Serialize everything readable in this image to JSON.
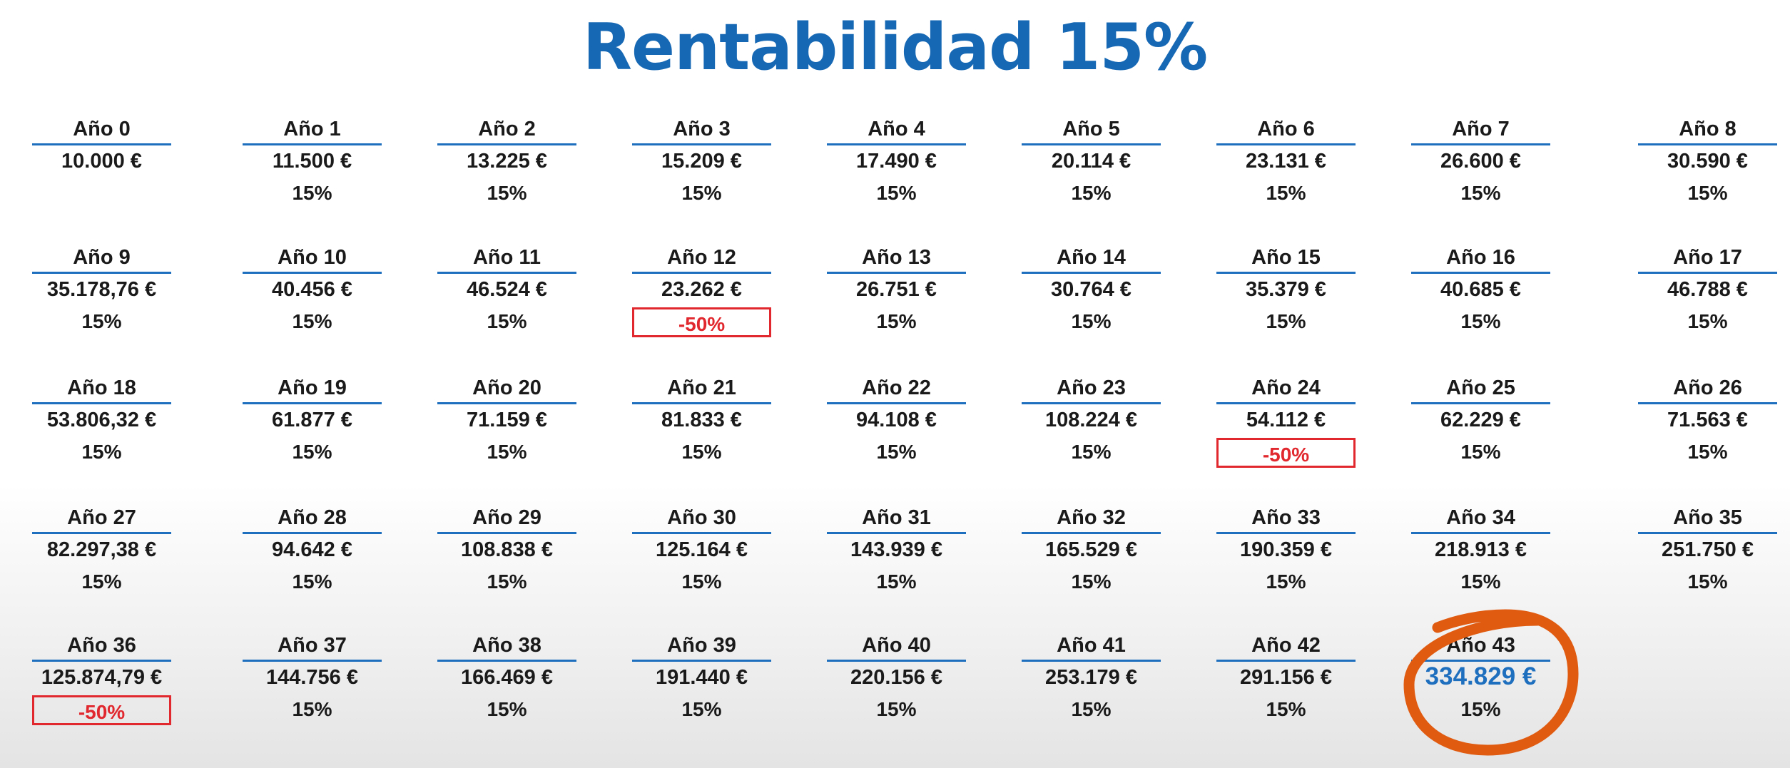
{
  "title": "Rentabilidad 15%",
  "colors": {
    "title": "#1668b4",
    "underline": "#1f6fbf",
    "negative": "#e0282e",
    "final_value": "#1f6fbf",
    "highlight_circle": "#e05a10"
  },
  "rows": [
    [
      {
        "year": "Año 0",
        "amount": "10.000 €",
        "rate": ""
      },
      {
        "year": "Año 1",
        "amount": "11.500 €",
        "rate": "15%"
      },
      {
        "year": "Año 2",
        "amount": "13.225 €",
        "rate": "15%"
      },
      {
        "year": "Año 3",
        "amount": "15.209 €",
        "rate": "15%"
      },
      {
        "year": "Año 4",
        "amount": "17.490 €",
        "rate": "15%"
      },
      {
        "year": "Año 5",
        "amount": "20.114 €",
        "rate": "15%"
      },
      {
        "year": "Año 6",
        "amount": "23.131 €",
        "rate": "15%"
      },
      {
        "year": "Año 7",
        "amount": "26.600 €",
        "rate": "15%"
      },
      {
        "year": "Año 8",
        "amount": "30.590 €",
        "rate": "15%"
      }
    ],
    [
      {
        "year": "Año 9",
        "amount": "35.178,76 €",
        "rate": "15%"
      },
      {
        "year": "Año 10",
        "amount": "40.456 €",
        "rate": "15%"
      },
      {
        "year": "Año 11",
        "amount": "46.524 €",
        "rate": "15%"
      },
      {
        "year": "Año 12",
        "amount": "23.262 €",
        "rate": "-50%",
        "negative": true
      },
      {
        "year": "Año 13",
        "amount": "26.751 €",
        "rate": "15%"
      },
      {
        "year": "Año 14",
        "amount": "30.764 €",
        "rate": "15%"
      },
      {
        "year": "Año 15",
        "amount": "35.379 €",
        "rate": "15%"
      },
      {
        "year": "Año 16",
        "amount": "40.685 €",
        "rate": "15%"
      },
      {
        "year": "Año 17",
        "amount": "46.788 €",
        "rate": "15%"
      }
    ],
    [
      {
        "year": "Año 18",
        "amount": "53.806,32 €",
        "rate": "15%"
      },
      {
        "year": "Año 19",
        "amount": "61.877 €",
        "rate": "15%"
      },
      {
        "year": "Año 20",
        "amount": "71.159 €",
        "rate": "15%"
      },
      {
        "year": "Año 21",
        "amount": "81.833 €",
        "rate": "15%"
      },
      {
        "year": "Año 22",
        "amount": "94.108 €",
        "rate": "15%"
      },
      {
        "year": "Año 23",
        "amount": "108.224 €",
        "rate": "15%"
      },
      {
        "year": "Año 24",
        "amount": "54.112 €",
        "rate": "-50%",
        "negative": true
      },
      {
        "year": "Año 25",
        "amount": "62.229 €",
        "rate": "15%"
      },
      {
        "year": "Año 26",
        "amount": "71.563 €",
        "rate": "15%"
      }
    ],
    [
      {
        "year": "Año 27",
        "amount": "82.297,38 €",
        "rate": "15%"
      },
      {
        "year": "Año 28",
        "amount": "94.642 €",
        "rate": "15%"
      },
      {
        "year": "Año 29",
        "amount": "108.838 €",
        "rate": "15%"
      },
      {
        "year": "Año 30",
        "amount": "125.164 €",
        "rate": "15%"
      },
      {
        "year": "Año 31",
        "amount": "143.939 €",
        "rate": "15%"
      },
      {
        "year": "Año 32",
        "amount": "165.529 €",
        "rate": "15%"
      },
      {
        "year": "Año 33",
        "amount": "190.359 €",
        "rate": "15%"
      },
      {
        "year": "Año 34",
        "amount": "218.913 €",
        "rate": "15%"
      },
      {
        "year": "Año 35",
        "amount": "251.750 €",
        "rate": "15%"
      }
    ],
    [
      {
        "year": "Año 36",
        "amount": "125.874,79 €",
        "rate": "-50%",
        "negative": true
      },
      {
        "year": "Año 37",
        "amount": "144.756 €",
        "rate": "15%"
      },
      {
        "year": "Año 38",
        "amount": "166.469 €",
        "rate": "15%"
      },
      {
        "year": "Año 39",
        "amount": "191.440 €",
        "rate": "15%"
      },
      {
        "year": "Año 40",
        "amount": "220.156 €",
        "rate": "15%"
      },
      {
        "year": "Año 41",
        "amount": "253.179 €",
        "rate": "15%"
      },
      {
        "year": "Año 42",
        "amount": "291.156 €",
        "rate": "15%"
      },
      {
        "year": "Año 43",
        "amount": "334.829 €",
        "rate": "15%",
        "final": true
      }
    ]
  ]
}
